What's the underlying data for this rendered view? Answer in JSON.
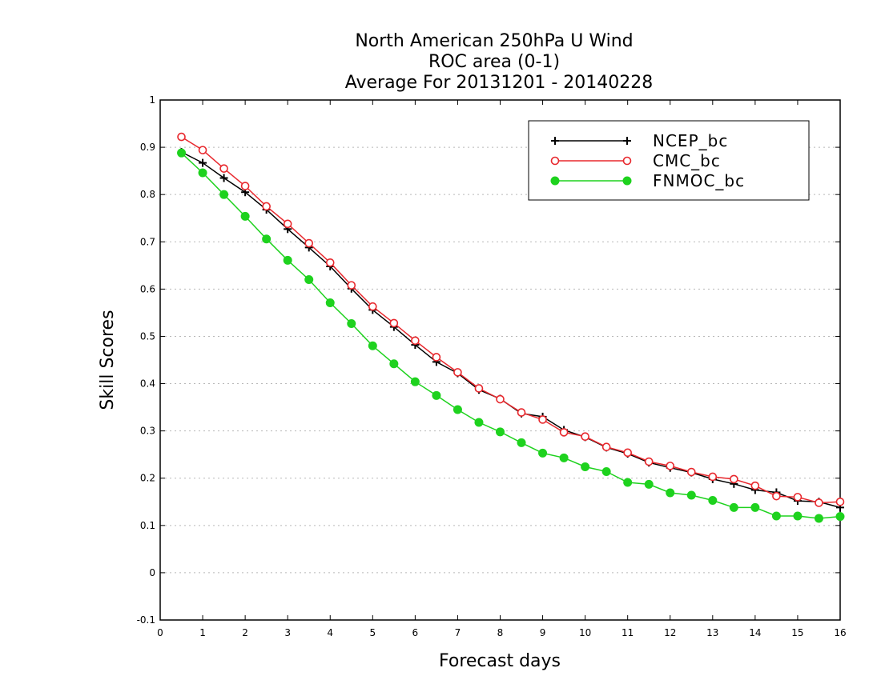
{
  "chart_data": {
    "type": "line",
    "title": "North American 250hPa U Wind",
    "subtitle": "ROC area (0-1)",
    "subtitle2": "Average For 20131201 - 20140228",
    "xlabel": "Forecast days",
    "ylabel": "Skill Scores",
    "xlim": [
      0,
      16
    ],
    "ylim": [
      -0.1,
      1
    ],
    "xticks": [
      0,
      1,
      2,
      3,
      4,
      5,
      6,
      7,
      8,
      9,
      10,
      11,
      12,
      13,
      14,
      15,
      16
    ],
    "yticks": [
      -0.1,
      0,
      0.1,
      0.2,
      0.3,
      0.4,
      0.5,
      0.6,
      0.7,
      0.8,
      0.9,
      1
    ],
    "ytick_labels": [
      "-0.1",
      "0",
      "0.1",
      "0.2",
      "0.3",
      "0.4",
      "0.5",
      "0.6",
      "0.7",
      "0.8",
      "0.9",
      "1"
    ],
    "grid": "horizontal dotted",
    "legend_position": "top-right",
    "x": [
      0.5,
      1,
      1.5,
      2,
      2.5,
      3,
      3.5,
      4,
      4.5,
      5,
      5.5,
      6,
      6.5,
      7,
      7.5,
      8,
      8.5,
      9,
      9.5,
      10,
      10.5,
      11,
      11.5,
      12,
      12.5,
      13,
      13.5,
      14,
      14.5,
      15,
      15.5,
      16
    ],
    "series": [
      {
        "name": "NCEP_bc",
        "color": "#000000",
        "marker": "plus",
        "values": [
          0.89,
          0.867,
          0.835,
          0.805,
          0.768,
          0.727,
          0.688,
          0.648,
          0.601,
          0.556,
          0.52,
          0.482,
          0.446,
          0.422,
          0.387,
          0.368,
          0.337,
          0.33,
          0.302,
          0.287,
          0.265,
          0.252,
          0.233,
          0.222,
          0.212,
          0.198,
          0.188,
          0.175,
          0.17,
          0.152,
          0.15,
          0.138
        ]
      },
      {
        "name": "CMC_bc",
        "color": "#e8282d",
        "marker": "open-circle",
        "values": [
          0.922,
          0.894,
          0.855,
          0.818,
          0.775,
          0.738,
          0.697,
          0.656,
          0.608,
          0.563,
          0.528,
          0.491,
          0.456,
          0.424,
          0.39,
          0.367,
          0.339,
          0.324,
          0.297,
          0.288,
          0.266,
          0.254,
          0.235,
          0.226,
          0.213,
          0.203,
          0.198,
          0.184,
          0.162,
          0.16,
          0.148,
          0.15
        ]
      },
      {
        "name": "FNMOC_bc",
        "color": "#1ed21e",
        "marker": "filled-circle",
        "values": [
          0.888,
          0.846,
          0.8,
          0.754,
          0.706,
          0.661,
          0.62,
          0.571,
          0.527,
          0.48,
          0.442,
          0.404,
          0.375,
          0.345,
          0.318,
          0.298,
          0.275,
          0.253,
          0.243,
          0.224,
          0.214,
          0.191,
          0.187,
          0.169,
          0.164,
          0.153,
          0.138,
          0.138,
          0.12,
          0.12,
          0.115,
          0.119
        ]
      }
    ]
  }
}
